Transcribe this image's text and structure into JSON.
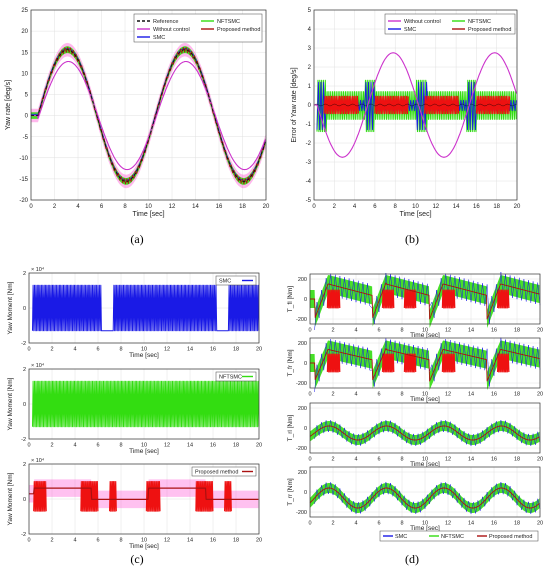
{
  "panels": [
    {
      "id": "a",
      "caption": "(a)",
      "xlabel": "Time [sec]",
      "ylabel": "Yaw rate [deg/s]",
      "xlim": [
        0,
        20
      ],
      "ylim": [
        -20,
        25
      ],
      "xticks": [
        0,
        2,
        4,
        6,
        8,
        10,
        12,
        14,
        16,
        18,
        20
      ],
      "yticks": [
        -20,
        -15,
        -10,
        -5,
        0,
        5,
        10,
        15,
        20,
        25
      ],
      "legend": [
        "Reference",
        "Without control",
        "SMC",
        "NFTSMC",
        "Proposed method"
      ]
    },
    {
      "id": "b",
      "caption": "(b)",
      "xlabel": "Time [sec]",
      "ylabel": "Error of Yaw rate [deg/s]",
      "xlim": [
        0,
        20
      ],
      "ylim": [
        -5,
        5
      ],
      "xticks": [
        0,
        2,
        4,
        6,
        8,
        10,
        12,
        14,
        16,
        18,
        20
      ],
      "yticks": [
        -5,
        -4,
        -3,
        -2,
        -1,
        0,
        1,
        2,
        3,
        4,
        5
      ],
      "legend": [
        "Without control",
        "SMC",
        "NFTSMC",
        "Proposed method"
      ]
    }
  ],
  "panel_c": {
    "caption": "(c)",
    "xlabel": "Time [sec]",
    "ylabel": "Yaw Moment [Nm]",
    "multiplier": "× 10⁴",
    "xlim": [
      0,
      20
    ],
    "xticks": [
      0,
      2,
      4,
      6,
      8,
      10,
      12,
      14,
      16,
      18,
      20
    ],
    "yticks": [
      -2,
      0,
      2
    ],
    "subplots": [
      {
        "legend": "SMC"
      },
      {
        "legend": "NFTSMC"
      },
      {
        "legend": "Proposed method"
      }
    ]
  },
  "panel_d": {
    "caption": "(d)",
    "xlabel": "Time [sec]",
    "xlim": [
      0,
      20
    ],
    "xticks": [
      0,
      2,
      4,
      6,
      8,
      10,
      12,
      14,
      16,
      18,
      20
    ],
    "subplots": [
      {
        "ylabel": "T_fl [Nm]",
        "yticks": [
          -200,
          0,
          200
        ]
      },
      {
        "ylabel": "T_fr [Nm]",
        "yticks": [
          -200,
          0,
          200
        ]
      },
      {
        "ylabel": "T_rl [Nm]",
        "yticks": [
          -200,
          0,
          200
        ]
      },
      {
        "ylabel": "T_rr [Nm]",
        "yticks": [
          -200,
          0,
          200
        ]
      }
    ],
    "legend": [
      "SMC",
      "NFTSMC",
      "Proposed method"
    ]
  },
  "colors": {
    "reference": "#111111",
    "without_control": "#cc33cc",
    "smc": "#1a1ae6",
    "nftsmc": "#33dd11",
    "proposed": "#aa1111",
    "pink": "#ff33cc",
    "red_fill": "#ee1111",
    "grid": "#e0e0e0"
  },
  "chart_data": [
    {
      "type": "line",
      "title": "",
      "xlabel": "Time [sec]",
      "ylabel": "Yaw rate [deg/s]",
      "xlim": [
        0,
        20
      ],
      "ylim": [
        -20,
        25
      ],
      "grid": true,
      "legend_position": "top-right",
      "x": [
        0,
        0.5,
        1,
        1.5,
        2,
        2.5,
        3,
        3.5,
        4,
        5,
        6,
        7,
        8,
        9,
        10,
        11,
        12,
        13,
        14,
        15,
        16,
        17,
        18,
        19,
        20
      ],
      "series": [
        {
          "name": "Reference",
          "values": [
            0,
            0,
            5,
            10,
            14,
            15.5,
            16,
            15.5,
            13,
            6,
            -3,
            -11,
            -15.5,
            -13,
            -5,
            4,
            12,
            15.5,
            15,
            9,
            0,
            -9,
            -15.5,
            -14,
            -5
          ]
        },
        {
          "name": "Without control",
          "values": [
            0,
            0,
            4,
            8,
            11.5,
            12.8,
            13,
            12.5,
            10.5,
            4.5,
            -3,
            -9.5,
            -13,
            -11,
            -4,
            3.5,
            10,
            13,
            12.5,
            7.5,
            0,
            -7.5,
            -13,
            -11.5,
            -4
          ]
        },
        {
          "name": "SMC",
          "values": [
            0,
            0,
            5,
            10,
            14,
            15.5,
            16,
            15.5,
            13,
            6,
            -3,
            -11,
            -15.5,
            -13,
            -5,
            4,
            12,
            15.5,
            15,
            9,
            0,
            -9,
            -15.5,
            -14,
            -5
          ]
        },
        {
          "name": "NFTSMC",
          "values": [
            0,
            0,
            5,
            10,
            14,
            15.5,
            16,
            15.5,
            13,
            6,
            -3,
            -11,
            -15.5,
            -13,
            -5,
            4,
            12,
            15.5,
            15,
            9,
            0,
            -9,
            -15.5,
            -14,
            -5
          ]
        },
        {
          "name": "Proposed method",
          "values": [
            0,
            0,
            5,
            10,
            14,
            15.5,
            16,
            15.5,
            13,
            6,
            -3,
            -11,
            -15.5,
            -13,
            -5,
            4,
            12,
            15.5,
            15,
            9,
            0,
            -9,
            -15.5,
            -14,
            -5
          ]
        }
      ]
    },
    {
      "type": "line",
      "title": "",
      "xlabel": "Time [sec]",
      "ylabel": "Error of Yaw rate [deg/s]",
      "xlim": [
        0,
        20
      ],
      "ylim": [
        -5,
        5
      ],
      "grid": true,
      "legend_position": "top-right",
      "x": [
        0,
        1,
        2,
        2.5,
        3,
        4,
        5,
        6,
        7,
        7.5,
        8,
        9,
        10,
        11,
        12,
        12.5,
        13,
        14,
        15,
        16,
        17,
        17.5,
        18,
        19,
        20
      ],
      "series": [
        {
          "name": "Without control",
          "values": [
            0,
            -1.0,
            -2.4,
            -2.7,
            -2.6,
            -1.6,
            0,
            1.6,
            2.6,
            2.8,
            2.7,
            1.6,
            0,
            -1.6,
            -2.6,
            -2.8,
            -2.7,
            -1.6,
            0,
            1.6,
            2.6,
            2.8,
            2.6,
            1.6,
            0.5
          ]
        },
        {
          "name": "SMC",
          "amplitude_band": 1.0
        },
        {
          "name": "NFTSMC",
          "amplitude_band": 0.7
        },
        {
          "name": "Proposed method",
          "amplitude_band": 0.5
        }
      ]
    },
    {
      "type": "line",
      "title": "",
      "xlabel": "Time [sec]",
      "ylabel": "Yaw Moment [Nm]",
      "multiplier": "× 10⁴",
      "xlim": [
        0,
        20
      ],
      "ylim": [
        -2,
        2
      ],
      "grid": true,
      "series": [
        {
          "name": "SMC",
          "band": [
            -1.3,
            1.3
          ],
          "negative_plateaus": [
            [
              6.3,
              7.3
            ],
            [
              16.3,
              17.3
            ]
          ]
        },
        {
          "name": "NFTSMC",
          "band": [
            -1.3,
            1.3
          ]
        },
        {
          "name": "Proposed method",
          "band": [
            -1.0,
            1.2
          ],
          "switch_times": [
            0,
            1.5,
            4.5,
            6,
            7,
            11.5,
            14.5,
            16,
            17
          ]
        }
      ]
    },
    {
      "type": "line",
      "title": "",
      "xlabel": "Time [sec]",
      "xlim": [
        0,
        20
      ],
      "ylim": [
        -250,
        250
      ],
      "grid": true,
      "legend_position": "bottom",
      "series": [
        {
          "name": "SMC"
        },
        {
          "name": "NFTSMC"
        },
        {
          "name": "Proposed method"
        }
      ],
      "subplots": [
        "T_fl [Nm]",
        "T_fr [Nm]",
        "T_rl [Nm]",
        "T_rr [Nm]"
      ]
    }
  ]
}
